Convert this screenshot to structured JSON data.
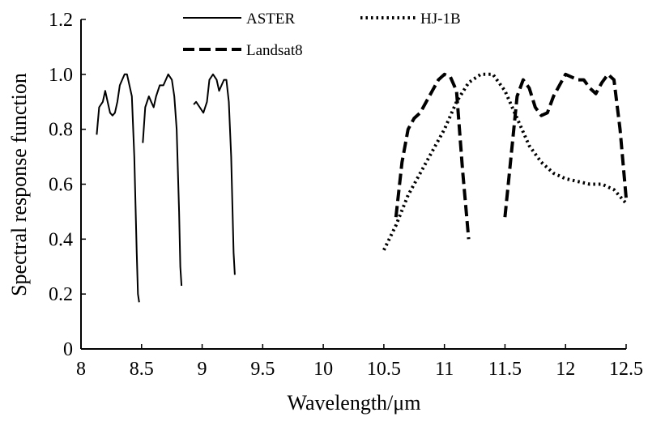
{
  "chart_data": {
    "type": "line",
    "title": "",
    "xlabel": "Wavelength/μm",
    "ylabel": "Spectral response function",
    "xlim": [
      8,
      12.5
    ],
    "ylim": [
      0,
      1.2
    ],
    "x_ticks": [
      "8",
      "8.5",
      "9",
      "9.5",
      "10",
      "10.5",
      "11",
      "11.5",
      "12",
      "12.5"
    ],
    "y_ticks": [
      "0",
      "0.2",
      "0.4",
      "0.6",
      "0.8",
      "1.0",
      "1.2"
    ],
    "grid": false,
    "legend_position": "top",
    "series": [
      {
        "name": "ASTER",
        "style": "solid",
        "color": "#000000",
        "segments": [
          [
            [
              8.13,
              0.78
            ],
            [
              8.15,
              0.88
            ],
            [
              8.18,
              0.9
            ],
            [
              8.2,
              0.94
            ],
            [
              8.22,
              0.9
            ],
            [
              8.24,
              0.86
            ],
            [
              8.26,
              0.85
            ],
            [
              8.28,
              0.86
            ],
            [
              8.3,
              0.9
            ],
            [
              8.32,
              0.96
            ],
            [
              8.34,
              0.98
            ],
            [
              8.36,
              1.0
            ],
            [
              8.38,
              1.0
            ],
            [
              8.4,
              0.96
            ],
            [
              8.42,
              0.92
            ],
            [
              8.44,
              0.7
            ],
            [
              8.46,
              0.35
            ],
            [
              8.47,
              0.2
            ],
            [
              8.48,
              0.17
            ]
          ],
          [
            [
              8.51,
              0.75
            ],
            [
              8.53,
              0.88
            ],
            [
              8.56,
              0.92
            ],
            [
              8.58,
              0.9
            ],
            [
              8.6,
              0.88
            ],
            [
              8.62,
              0.92
            ],
            [
              8.65,
              0.96
            ],
            [
              8.68,
              0.96
            ],
            [
              8.7,
              0.98
            ],
            [
              8.72,
              1.0
            ],
            [
              8.75,
              0.98
            ],
            [
              8.77,
              0.92
            ],
            [
              8.79,
              0.8
            ],
            [
              8.81,
              0.5
            ],
            [
              8.82,
              0.3
            ],
            [
              8.83,
              0.23
            ]
          ],
          [
            [
              8.93,
              0.89
            ],
            [
              8.95,
              0.9
            ],
            [
              8.98,
              0.88
            ],
            [
              9.01,
              0.86
            ],
            [
              9.04,
              0.9
            ],
            [
              9.06,
              0.98
            ],
            [
              9.09,
              1.0
            ],
            [
              9.12,
              0.98
            ],
            [
              9.14,
              0.94
            ],
            [
              9.16,
              0.96
            ],
            [
              9.18,
              0.98
            ],
            [
              9.2,
              0.98
            ],
            [
              9.22,
              0.9
            ],
            [
              9.24,
              0.7
            ],
            [
              9.26,
              0.35
            ],
            [
              9.27,
              0.27
            ]
          ]
        ]
      },
      {
        "name": "HJ-1B",
        "style": "dotted",
        "color": "#000000",
        "segments": [
          [
            [
              10.5,
              0.36
            ],
            [
              10.6,
              0.45
            ],
            [
              10.7,
              0.56
            ],
            [
              10.8,
              0.64
            ],
            [
              10.9,
              0.72
            ],
            [
              11.0,
              0.8
            ],
            [
              11.1,
              0.9
            ],
            [
              11.2,
              0.97
            ],
            [
              11.3,
              1.0
            ],
            [
              11.4,
              1.0
            ],
            [
              11.5,
              0.94
            ],
            [
              11.6,
              0.84
            ],
            [
              11.7,
              0.74
            ],
            [
              11.8,
              0.68
            ],
            [
              11.9,
              0.64
            ],
            [
              12.0,
              0.62
            ],
            [
              12.1,
              0.61
            ],
            [
              12.2,
              0.6
            ],
            [
              12.3,
              0.6
            ],
            [
              12.4,
              0.58
            ],
            [
              12.5,
              0.53
            ]
          ]
        ]
      },
      {
        "name": "Landsat8",
        "style": "dashed",
        "color": "#000000",
        "segments": [
          [
            [
              10.6,
              0.48
            ],
            [
              10.65,
              0.68
            ],
            [
              10.7,
              0.8
            ],
            [
              10.75,
              0.84
            ],
            [
              10.8,
              0.86
            ],
            [
              10.85,
              0.9
            ],
            [
              10.9,
              0.94
            ],
            [
              10.95,
              0.98
            ],
            [
              11.0,
              1.0
            ],
            [
              11.05,
              0.99
            ],
            [
              11.1,
              0.94
            ],
            [
              11.15,
              0.65
            ],
            [
              11.2,
              0.4
            ]
          ],
          [
            [
              11.5,
              0.48
            ],
            [
              11.55,
              0.7
            ],
            [
              11.6,
              0.92
            ],
            [
              11.65,
              0.98
            ],
            [
              11.7,
              0.95
            ],
            [
              11.75,
              0.88
            ],
            [
              11.8,
              0.85
            ],
            [
              11.85,
              0.86
            ],
            [
              11.9,
              0.92
            ],
            [
              11.95,
              0.96
            ],
            [
              12.0,
              1.0
            ],
            [
              12.05,
              0.99
            ],
            [
              12.1,
              0.98
            ],
            [
              12.15,
              0.98
            ],
            [
              12.2,
              0.95
            ],
            [
              12.25,
              0.93
            ],
            [
              12.3,
              0.97
            ],
            [
              12.35,
              1.0
            ],
            [
              12.4,
              0.98
            ],
            [
              12.45,
              0.8
            ],
            [
              12.5,
              0.55
            ]
          ]
        ]
      }
    ]
  }
}
